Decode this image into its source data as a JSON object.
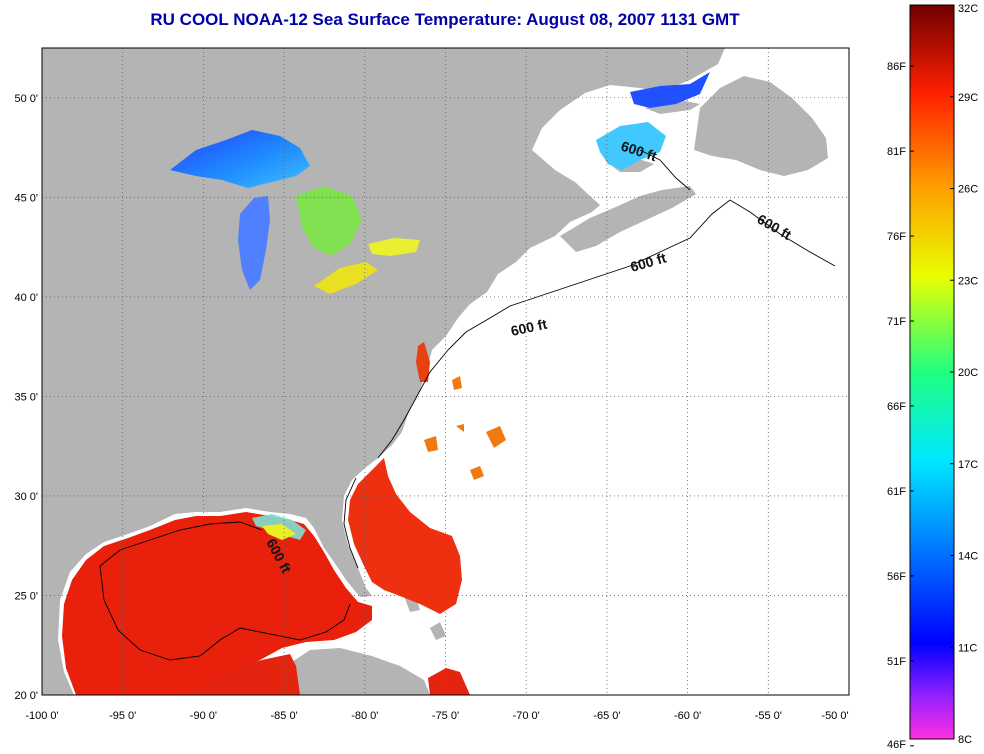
{
  "title": "RU COOL  NOAA-12  Sea Surface Temperature:  August 08, 2007 1131 GMT",
  "map": {
    "lon_range": [
      -100,
      -50
    ],
    "lat_range": [
      20,
      52.5
    ],
    "lat_labels": [
      "50 0'",
      "45 0'",
      "40 0'",
      "35 0'",
      "30 0'",
      "25 0'",
      "20 0'"
    ],
    "lat_values": [
      50,
      45,
      40,
      35,
      30,
      25,
      20
    ],
    "lon_labels": [
      "-100 0'",
      "-95 0'",
      "-90 0'",
      "-85 0'",
      "-80 0'",
      "-75 0'",
      "-70 0'",
      "-65 0'",
      "-60 0'",
      "-55 0'",
      "-50 0'"
    ],
    "lon_values": [
      -100,
      -95,
      -90,
      -85,
      -80,
      -75,
      -70,
      -65,
      -60,
      -55,
      -50
    ],
    "contour_labels": [
      "600 ft",
      "600 ft",
      "600 ft",
      "600 ft",
      "600 ft"
    ],
    "colors": {
      "land": "#b4b4b4",
      "no_data": "#ffffff",
      "warm_water": "#e8200c"
    }
  },
  "colorbar": {
    "celsius_labels": [
      "32C",
      "29C",
      "26C",
      "23C",
      "20C",
      "17C",
      "14C",
      "11C",
      "8C"
    ],
    "fahrenheit_labels": [
      "86F",
      "81F",
      "76F",
      "71F",
      "66F",
      "61F",
      "56F",
      "51F",
      "46F"
    ],
    "celsius_range": [
      8,
      32
    ],
    "fahrenheit_values": [
      86,
      81,
      76,
      71,
      66,
      61,
      56,
      51,
      46
    ]
  }
}
